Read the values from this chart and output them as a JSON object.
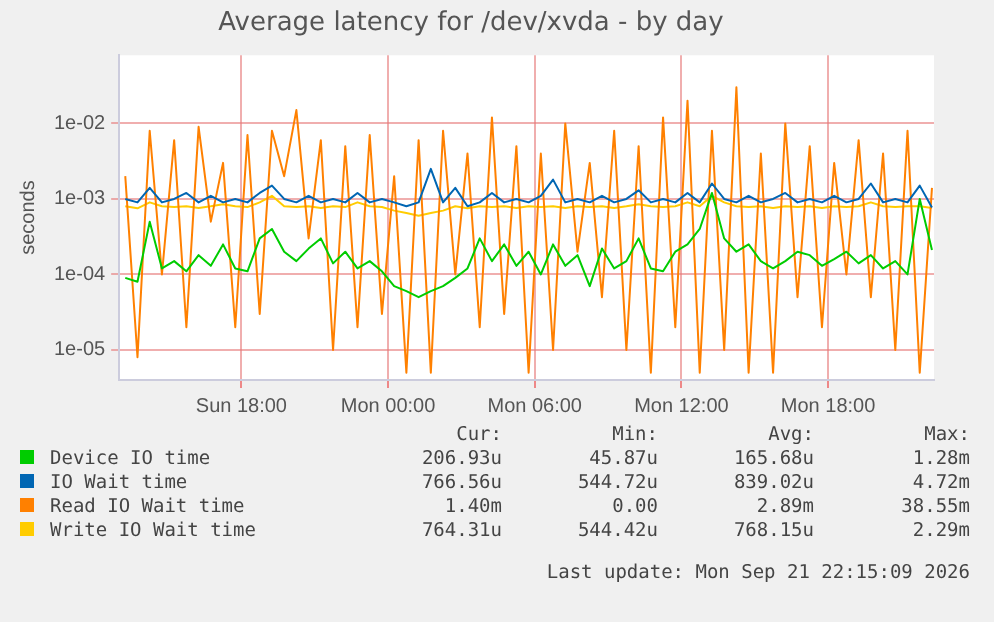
{
  "chart_data": {
    "type": "line",
    "title": "Average latency for /dev/xvda - by day",
    "ylabel": "seconds",
    "log": "y",
    "grid": true,
    "legend": "bottom",
    "marker": "none",
    "line_style": "solid",
    "xlim": [
      "2026-09-20T13:00",
      "2026-09-21T22:20"
    ],
    "xticks": [
      {
        "value": "2026-09-20T18:00",
        "label": "Sun 18:00"
      },
      {
        "value": "2026-09-21T00:00",
        "label": "Mon 00:00"
      },
      {
        "value": "2026-09-21T06:00",
        "label": "Mon 06:00"
      },
      {
        "value": "2026-09-21T12:00",
        "label": "Mon 12:00"
      },
      {
        "value": "2026-09-21T18:00",
        "label": "Mon 18:00"
      }
    ],
    "ylim": [
      4e-06,
      0.08
    ],
    "yticks": [
      {
        "value": 1e-05,
        "label": "1e-05"
      },
      {
        "value": 0.0001,
        "label": "1e-04"
      },
      {
        "value": 0.001,
        "label": "1e-03"
      },
      {
        "value": 0.01,
        "label": "1e-02"
      }
    ],
    "x": [
      "2026-09-20T13:15",
      "2026-09-20T13:45",
      "2026-09-20T14:15",
      "2026-09-20T14:45",
      "2026-09-20T15:15",
      "2026-09-20T15:45",
      "2026-09-20T16:15",
      "2026-09-20T16:45",
      "2026-09-20T17:15",
      "2026-09-20T17:45",
      "2026-09-20T18:15",
      "2026-09-20T18:45",
      "2026-09-20T19:15",
      "2026-09-20T19:45",
      "2026-09-20T20:15",
      "2026-09-20T20:45",
      "2026-09-20T21:15",
      "2026-09-20T21:45",
      "2026-09-20T22:15",
      "2026-09-20T22:45",
      "2026-09-20T23:15",
      "2026-09-20T23:45",
      "2026-09-21T00:15",
      "2026-09-21T00:45",
      "2026-09-21T01:15",
      "2026-09-21T01:45",
      "2026-09-21T02:15",
      "2026-09-21T02:45",
      "2026-09-21T03:15",
      "2026-09-21T03:45",
      "2026-09-21T04:15",
      "2026-09-21T04:45",
      "2026-09-21T05:15",
      "2026-09-21T05:45",
      "2026-09-21T06:15",
      "2026-09-21T06:45",
      "2026-09-21T07:15",
      "2026-09-21T07:45",
      "2026-09-21T08:15",
      "2026-09-21T08:45",
      "2026-09-21T09:15",
      "2026-09-21T09:45",
      "2026-09-21T10:15",
      "2026-09-21T10:45",
      "2026-09-21T11:15",
      "2026-09-21T11:45",
      "2026-09-21T12:15",
      "2026-09-21T12:45",
      "2026-09-21T13:15",
      "2026-09-21T13:45",
      "2026-09-21T14:15",
      "2026-09-21T14:45",
      "2026-09-21T15:15",
      "2026-09-21T15:45",
      "2026-09-21T16:15",
      "2026-09-21T16:45",
      "2026-09-21T17:15",
      "2026-09-21T17:45",
      "2026-09-21T18:15",
      "2026-09-21T18:45",
      "2026-09-21T19:15",
      "2026-09-21T19:45",
      "2026-09-21T20:15",
      "2026-09-21T20:45",
      "2026-09-21T21:15",
      "2026-09-21T21:45",
      "2026-09-21T22:15"
    ],
    "series": [
      {
        "name": "Device IO time",
        "color": "#00cc00",
        "values": [
          9e-05,
          8e-05,
          0.0005,
          0.00012,
          0.00015,
          0.00011,
          0.00018,
          0.00013,
          0.00025,
          0.00012,
          0.00011,
          0.0003,
          0.0004,
          0.0002,
          0.00015,
          0.00022,
          0.0003,
          0.00014,
          0.0002,
          0.00012,
          0.00015,
          0.00011,
          7e-05,
          6e-05,
          5e-05,
          6e-05,
          7e-05,
          9e-05,
          0.00012,
          0.0003,
          0.00015,
          0.00025,
          0.00013,
          0.0002,
          0.0001,
          0.00025,
          0.00013,
          0.00018,
          7e-05,
          0.00022,
          0.00012,
          0.00015,
          0.0003,
          0.00012,
          0.00011,
          0.0002,
          0.00025,
          0.0004,
          0.0012,
          0.0003,
          0.0002,
          0.00025,
          0.00015,
          0.00012,
          0.00015,
          0.0002,
          0.00018,
          0.00013,
          0.00016,
          0.0002,
          0.00014,
          0.00018,
          0.00012,
          0.00015,
          0.0001,
          0.001,
          0.00021
        ]
      },
      {
        "name": "IO Wait time",
        "color": "#0066b3",
        "values": [
          0.001,
          0.0009,
          0.0014,
          0.0009,
          0.001,
          0.0012,
          0.0009,
          0.0011,
          0.0009,
          0.001,
          0.0009,
          0.0012,
          0.0015,
          0.001,
          0.0009,
          0.0011,
          0.0009,
          0.001,
          0.0009,
          0.0012,
          0.0009,
          0.001,
          0.0009,
          0.0008,
          0.0009,
          0.0025,
          0.0009,
          0.0014,
          0.0008,
          0.0009,
          0.0012,
          0.0009,
          0.001,
          0.0009,
          0.0011,
          0.0018,
          0.0009,
          0.001,
          0.0009,
          0.0011,
          0.0009,
          0.001,
          0.0013,
          0.0009,
          0.001,
          0.0009,
          0.0012,
          0.0009,
          0.0016,
          0.001,
          0.0009,
          0.0011,
          0.0009,
          0.001,
          0.0012,
          0.0009,
          0.001,
          0.0009,
          0.0011,
          0.0009,
          0.001,
          0.0016,
          0.0009,
          0.001,
          0.0009,
          0.0015,
          0.00077
        ]
      },
      {
        "name": "Read IO Wait time",
        "color": "#ff8000",
        "values": [
          0.002,
          8e-06,
          0.008,
          0.0001,
          0.006,
          2e-05,
          0.009,
          0.0005,
          0.003,
          2e-05,
          0.007,
          3e-05,
          0.008,
          0.002,
          0.015,
          0.0003,
          0.006,
          1e-05,
          0.005,
          2e-05,
          0.007,
          3e-05,
          0.002,
          5e-06,
          0.006,
          5e-06,
          0.008,
          0.0001,
          0.004,
          2e-05,
          0.012,
          3e-05,
          0.005,
          5e-06,
          0.004,
          1e-05,
          0.01,
          0.0002,
          0.003,
          5e-05,
          0.008,
          1e-05,
          0.005,
          5e-06,
          0.012,
          2e-05,
          0.02,
          5e-06,
          0.008,
          1e-05,
          0.03,
          5e-06,
          0.004,
          5e-06,
          0.01,
          5e-05,
          0.005,
          2e-05,
          0.003,
          0.0001,
          0.006,
          5e-05,
          0.004,
          1e-05,
          0.008,
          5e-06,
          0.0014
        ]
      },
      {
        "name": "Write IO Wait time",
        "color": "#ffcc00",
        "values": [
          0.0008,
          0.00075,
          0.0009,
          0.0008,
          0.00078,
          0.0008,
          0.00076,
          0.0008,
          0.00085,
          0.0008,
          0.00078,
          0.0009,
          0.0011,
          0.0008,
          0.00078,
          0.0008,
          0.00076,
          0.0008,
          0.00078,
          0.0009,
          0.0008,
          0.00078,
          0.0007,
          0.00065,
          0.0006,
          0.00065,
          0.0007,
          0.0008,
          0.00075,
          0.0008,
          0.00078,
          0.0008,
          0.00076,
          0.0008,
          0.00078,
          0.0008,
          0.00076,
          0.0008,
          0.00078,
          0.0008,
          0.00076,
          0.0008,
          0.00085,
          0.0008,
          0.00078,
          0.0008,
          0.0009,
          0.0008,
          0.0011,
          0.0009,
          0.0008,
          0.00078,
          0.0008,
          0.00076,
          0.0008,
          0.00078,
          0.0008,
          0.00076,
          0.0008,
          0.00078,
          0.0008,
          0.0009,
          0.0008,
          0.00078,
          0.0008,
          0.0008,
          0.00076
        ]
      }
    ],
    "annotations": [
      "Cur:",
      "Min:",
      "Avg:",
      "Max:",
      "206.93u",
      "45.87u",
      "165.68u",
      "1.28m",
      "766.56u",
      "544.72u",
      "839.02u",
      "4.72m",
      "1.40m",
      "0.00",
      "2.89m",
      "38.55m",
      "764.31u",
      "544.42u",
      "768.15u",
      "2.29m",
      "Last update: Mon Sep 21 22:15:09 2026"
    ]
  }
}
